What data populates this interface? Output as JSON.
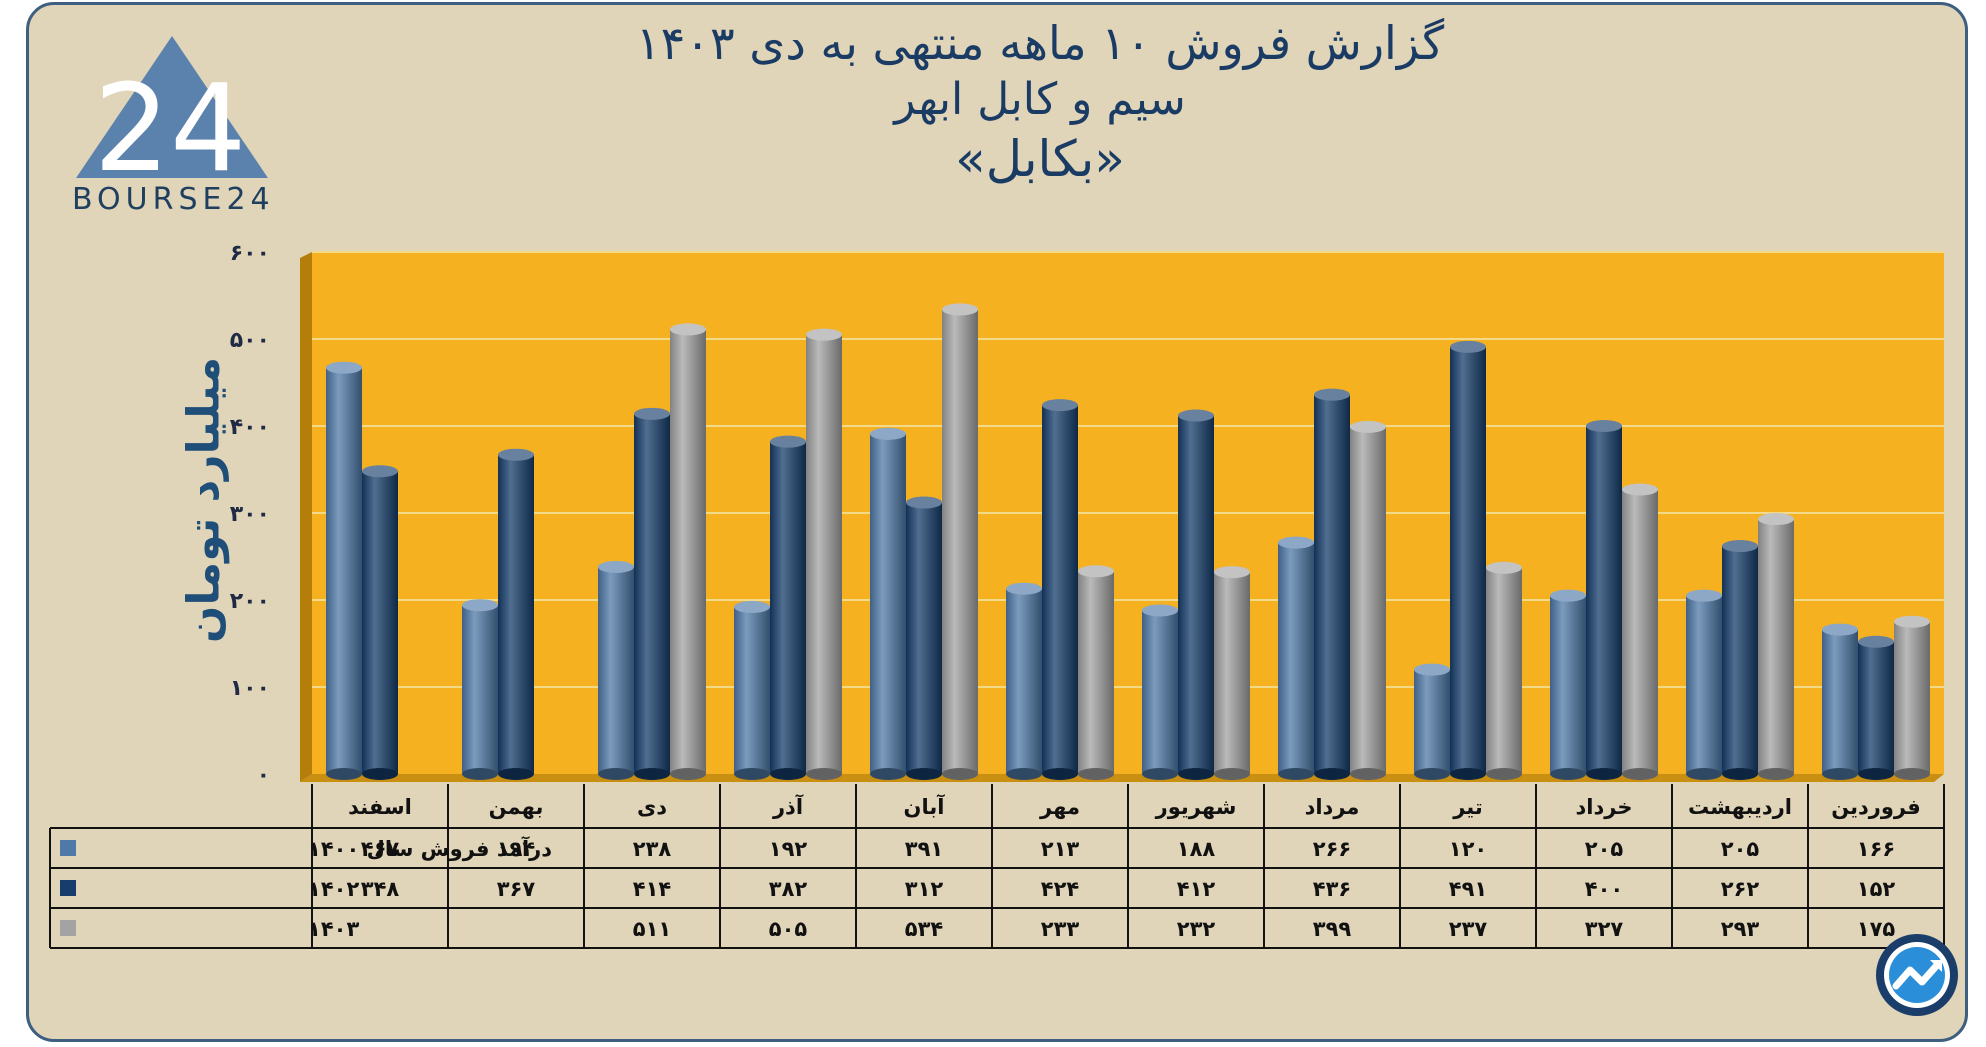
{
  "header": {
    "line1": "گزارش  فروش ۱۰ ماهه منتهی به دی ۱۴۰۳",
    "line2": "سیم و کابل ابهر",
    "line3": "«بکابل»"
  },
  "logo": {
    "text": "BOURSE24",
    "mark": "24",
    "icon": "bourse24-triangle-logo"
  },
  "badge": {
    "icon": "chart-trend-badge-icon"
  },
  "colors": {
    "plot_bg": "#f5b11f",
    "s1400": "#4f79a8",
    "s1402": "#163d6b",
    "s1403": "#a3a3a3"
  },
  "chart_data": {
    "type": "bar",
    "ylabel": "میلیارد تومان",
    "ylim": [
      0,
      600
    ],
    "yticks": [
      "۰",
      "۱۰۰",
      "۲۰۰",
      "۳۰۰",
      "۴۰۰",
      "۵۰۰",
      "۶۰۰"
    ],
    "grid": true,
    "categories": [
      "فروردین",
      "اردیبهشت",
      "خرداد",
      "تیر",
      "مرداد",
      "شهریور",
      "مهر",
      "آبان",
      "آذر",
      "دی",
      "بهمن",
      "اسفند"
    ],
    "series": [
      {
        "name": "درآمد فروش سال ۱۴۰۰",
        "values": [
          166,
          205,
          205,
          120,
          266,
          188,
          213,
          391,
          192,
          238,
          194,
          467
        ],
        "labels": [
          "۱۶۶",
          "۲۰۵",
          "۲۰۵",
          "۱۲۰",
          "۲۶۶",
          "۱۸۸",
          "۲۱۳",
          "۳۹۱",
          "۱۹۲",
          "۲۳۸",
          "۱۹۴",
          "۴۶۷"
        ]
      },
      {
        "name": "۱۴۰۲",
        "values": [
          152,
          262,
          400,
          491,
          436,
          412,
          424,
          312,
          382,
          414,
          367,
          348
        ],
        "labels": [
          "۱۵۲",
          "۲۶۲",
          "۴۰۰",
          "۴۹۱",
          "۴۳۶",
          "۴۱۲",
          "۴۲۴",
          "۳۱۲",
          "۳۸۲",
          "۴۱۴",
          "۳۶۷",
          "۳۴۸"
        ]
      },
      {
        "name": "۱۴۰۳",
        "values": [
          175,
          293,
          327,
          237,
          399,
          232,
          233,
          534,
          505,
          511,
          null,
          null
        ],
        "labels": [
          "۱۷۵",
          "۲۹۳",
          "۳۲۷",
          "۲۳۷",
          "۳۹۹",
          "۲۳۲",
          "۲۳۳",
          "۵۳۴",
          "۵۰۵",
          "۵۱۱",
          "",
          ""
        ]
      }
    ]
  }
}
